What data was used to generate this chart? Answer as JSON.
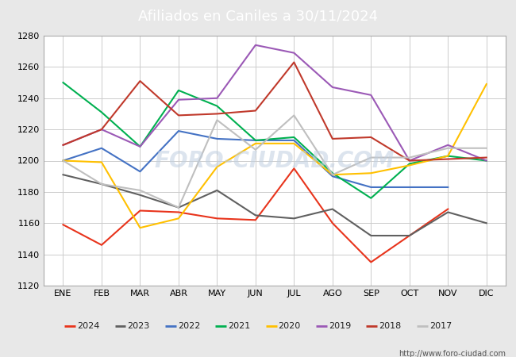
{
  "title": "Afiliados en Caniles a 30/11/2024",
  "title_bg_color": "#4472c4",
  "title_text_color": "#ffffff",
  "ylim": [
    1120,
    1280
  ],
  "yticks": [
    1120,
    1140,
    1160,
    1180,
    1200,
    1220,
    1240,
    1260,
    1280
  ],
  "months": [
    "ENE",
    "FEB",
    "MAR",
    "ABR",
    "MAY",
    "JUN",
    "JUL",
    "AGO",
    "SEP",
    "OCT",
    "NOV",
    "DIC"
  ],
  "series_order": [
    "2024",
    "2023",
    "2022",
    "2021",
    "2020",
    "2019",
    "2018",
    "2017"
  ],
  "series": {
    "2024": {
      "color": "#e8341c",
      "data": [
        1159,
        1146,
        1168,
        1167,
        1163,
        1162,
        1195,
        1160,
        1135,
        1152,
        1169,
        null
      ]
    },
    "2023": {
      "color": "#606060",
      "data": [
        1191,
        1185,
        1178,
        1170,
        1181,
        1165,
        1163,
        1169,
        1152,
        1152,
        1167,
        1160
      ]
    },
    "2022": {
      "color": "#4472c4",
      "data": [
        1200,
        1208,
        1193,
        1219,
        1214,
        1213,
        1213,
        1190,
        1183,
        1183,
        1183,
        null
      ]
    },
    "2021": {
      "color": "#00b050",
      "data": [
        1250,
        1231,
        1209,
        1245,
        1235,
        1213,
        1215,
        1192,
        1176,
        1198,
        1203,
        1200
      ]
    },
    "2020": {
      "color": "#ffc000",
      "data": [
        1200,
        1199,
        1157,
        1163,
        1196,
        1211,
        1211,
        1191,
        1192,
        1197,
        1203,
        1249
      ]
    },
    "2019": {
      "color": "#9b59b6",
      "data": [
        1210,
        1220,
        1209,
        1239,
        1240,
        1274,
        1269,
        1247,
        1242,
        1200,
        1210,
        1200
      ]
    },
    "2018": {
      "color": "#c0392b",
      "data": [
        1210,
        1220,
        1251,
        1229,
        1230,
        1232,
        1263,
        1214,
        1215,
        1200,
        1201,
        1202
      ]
    },
    "2017": {
      "color": "#bfbfbf",
      "data": [
        1200,
        1185,
        1181,
        1170,
        1226,
        1207,
        1229,
        1191,
        1202,
        1202,
        1208,
        1208
      ]
    }
  },
  "watermark": "FORO-CIUDAD.COM",
  "url": "http://www.foro-ciudad.com",
  "bg_color": "#e8e8e8",
  "plot_bg_color": "#ffffff",
  "grid_color": "#cccccc"
}
